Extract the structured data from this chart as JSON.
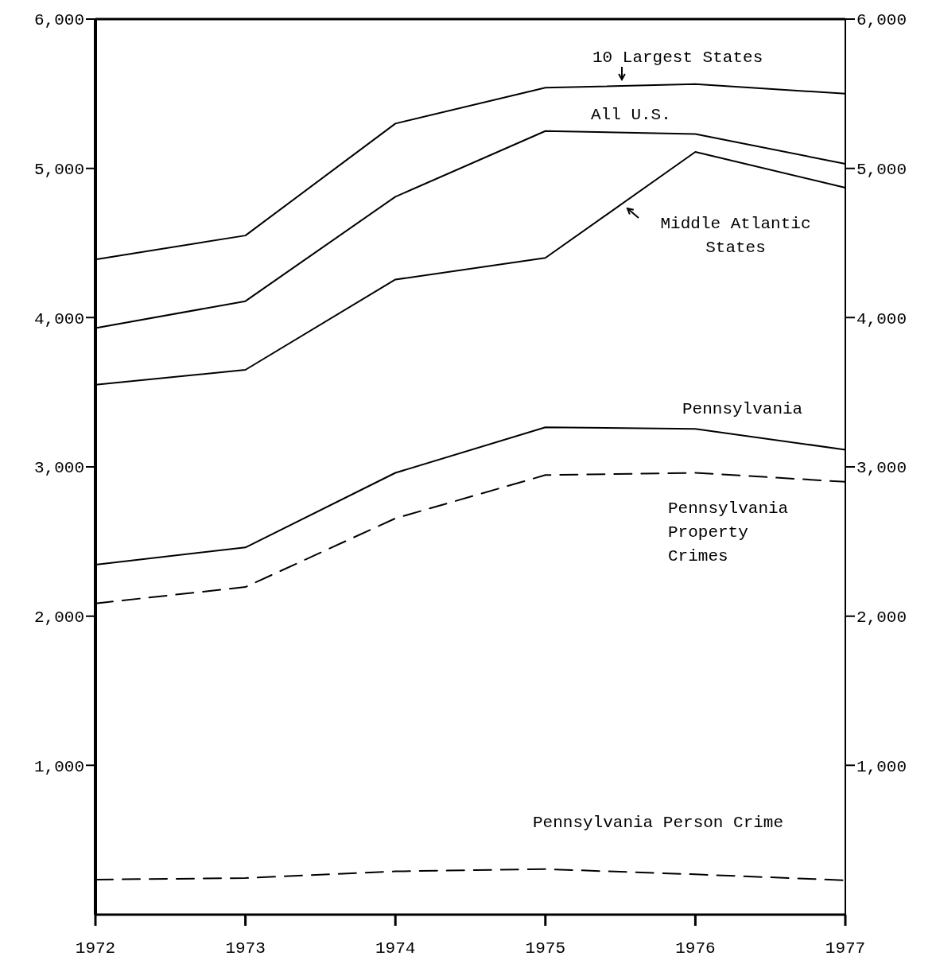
{
  "chart_data": {
    "type": "line",
    "x": [
      1972,
      1973,
      1974,
      1975,
      1976,
      1977
    ],
    "xlim": [
      1972,
      1977
    ],
    "xticks": [
      1972,
      1973,
      1974,
      1975,
      1976,
      1977
    ],
    "ylim": [
      0,
      6000
    ],
    "yticks": [
      {
        "value": 1000,
        "label": "1,000"
      },
      {
        "value": 2000,
        "label": "2,000"
      },
      {
        "value": 3000,
        "label": "3,000"
      },
      {
        "value": 4000,
        "label": "4,000"
      },
      {
        "value": 5000,
        "label": "5,000"
      },
      {
        "value": 6000,
        "label": "6,000"
      }
    ],
    "y2lim": [
      0,
      6000
    ],
    "y2ticks": [
      {
        "value": 1000,
        "label": "1,000"
      },
      {
        "value": 2000,
        "label": "2,000"
      },
      {
        "value": 3000,
        "label": "3,000"
      },
      {
        "value": 4000,
        "label": "4,000"
      },
      {
        "value": 5000,
        "label": "5,000"
      },
      {
        "value": 6000,
        "label": "6,000"
      }
    ],
    "grid": false,
    "marker": "none",
    "series": [
      {
        "name": "10 Largest States",
        "color": "#000000",
        "line_style": "solid",
        "values": [
          4390,
          4550,
          5300,
          5540,
          5565,
          5500
        ]
      },
      {
        "name": "All U.S.",
        "color": "#000000",
        "line_style": "solid",
        "values": [
          3930,
          4110,
          4810,
          5250,
          5230,
          5030
        ]
      },
      {
        "name": "Middle Atlantic States",
        "color": "#000000",
        "line_style": "solid",
        "values": [
          3550,
          3650,
          4255,
          4400,
          5110,
          4870
        ]
      },
      {
        "name": "Pennsylvania",
        "color": "#000000",
        "line_style": "solid",
        "values": [
          2345,
          2460,
          2960,
          3265,
          3255,
          3115
        ]
      },
      {
        "name": "Pennsylvania Property Crimes",
        "color": "#000000",
        "line_style": "dashed",
        "values": [
          2085,
          2195,
          2655,
          2945,
          2960,
          2900
        ]
      },
      {
        "name": "Pennsylvania Person Crime",
        "color": "#000000",
        "line_style": "dashed",
        "values": [
          235,
          245,
          290,
          305,
          270,
          230
        ]
      }
    ]
  }
}
